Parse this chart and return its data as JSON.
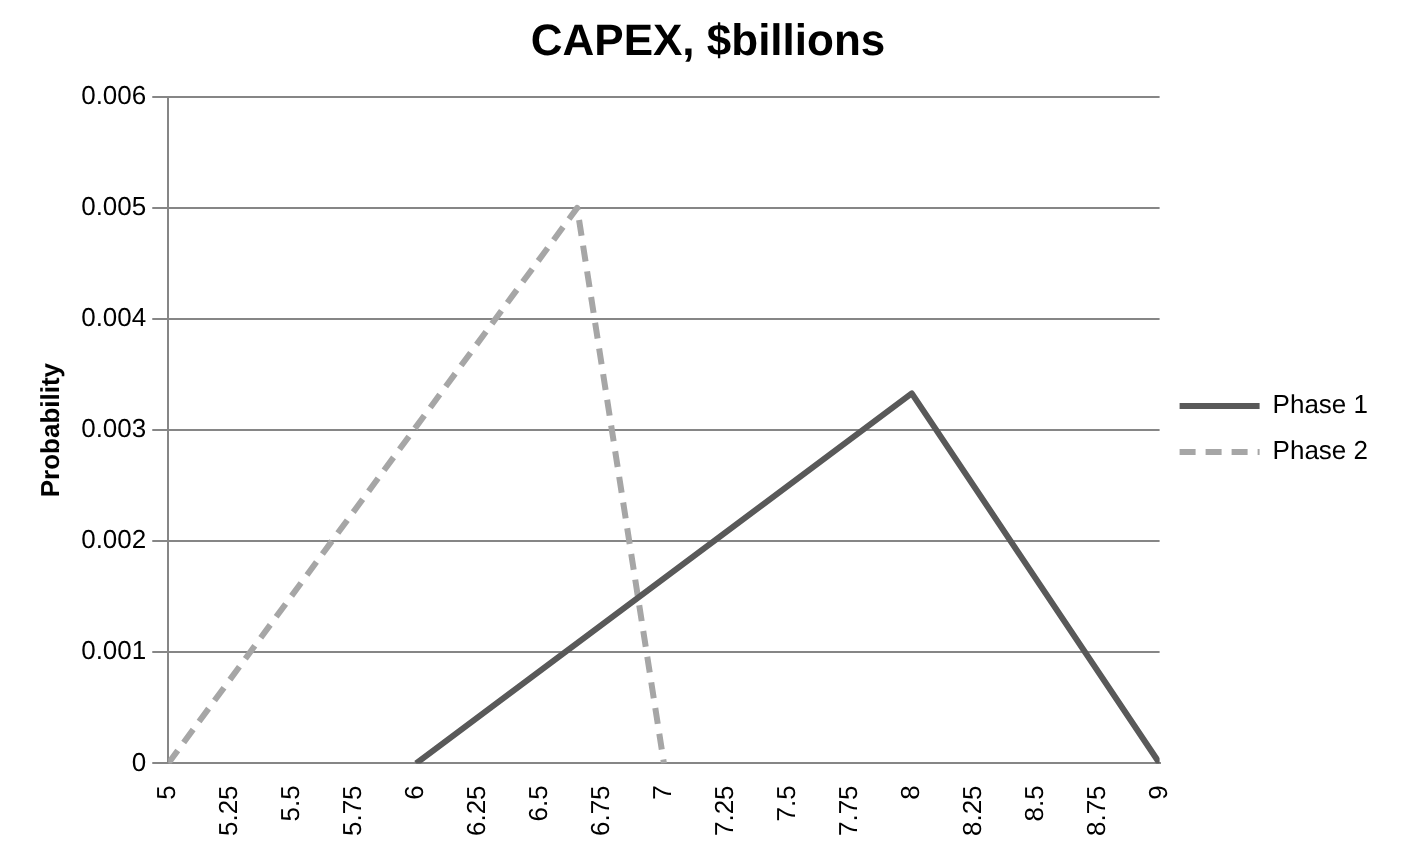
{
  "chart_data": {
    "type": "line",
    "title": "CAPEX, $billions",
    "ylabel": "Probability",
    "series": [
      {
        "name": "Phase 1",
        "color": "#595959",
        "line_style": "solid",
        "x": [
          6,
          8,
          9
        ],
        "values": [
          0,
          0.00333,
          0
        ]
      },
      {
        "name": "Phase 2",
        "color": "#a6a6a6",
        "line_style": "dashed",
        "x": [
          5,
          6.65,
          7
        ],
        "values": [
          0,
          0.005,
          0
        ]
      }
    ],
    "xlim": [
      5,
      9
    ],
    "xticks": [
      5,
      5.25,
      5.5,
      5.75,
      6,
      6.25,
      6.5,
      6.75,
      7,
      7.25,
      7.5,
      7.75,
      8,
      8.25,
      8.5,
      8.75,
      9
    ],
    "ylim": [
      0,
      0.006
    ],
    "yticks": [
      0,
      0.001,
      0.002,
      0.003,
      0.004,
      0.005,
      0.006
    ],
    "grid": "y",
    "legend": "right",
    "marker": "none"
  }
}
